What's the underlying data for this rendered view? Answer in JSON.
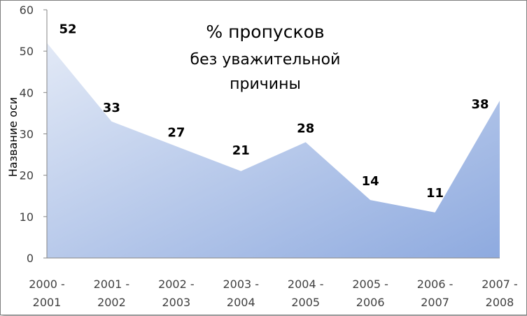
{
  "chart_data": {
    "type": "area",
    "title_lines": [
      "% пропусков",
      "без уважительной",
      "причины"
    ],
    "ylabel": "Название оси",
    "xlabel": "",
    "categories": [
      [
        "2000 -",
        "2001"
      ],
      [
        "2001 -",
        "2002"
      ],
      [
        "2002 -",
        "2003"
      ],
      [
        "2003 -",
        "2004"
      ],
      [
        "2004 -",
        "2005"
      ],
      [
        "2005 -",
        "2006"
      ],
      [
        "2006 -",
        "2007"
      ],
      [
        "2007 -",
        "2008"
      ]
    ],
    "values": [
      52,
      33,
      27,
      21,
      28,
      14,
      11,
      38
    ],
    "ylim": [
      0,
      60
    ],
    "yticks": [
      0,
      10,
      20,
      30,
      40,
      50,
      60
    ],
    "grid": false,
    "legend": "none",
    "fill_gradient": [
      "#e2e9f6",
      "#8eaadf"
    ]
  }
}
